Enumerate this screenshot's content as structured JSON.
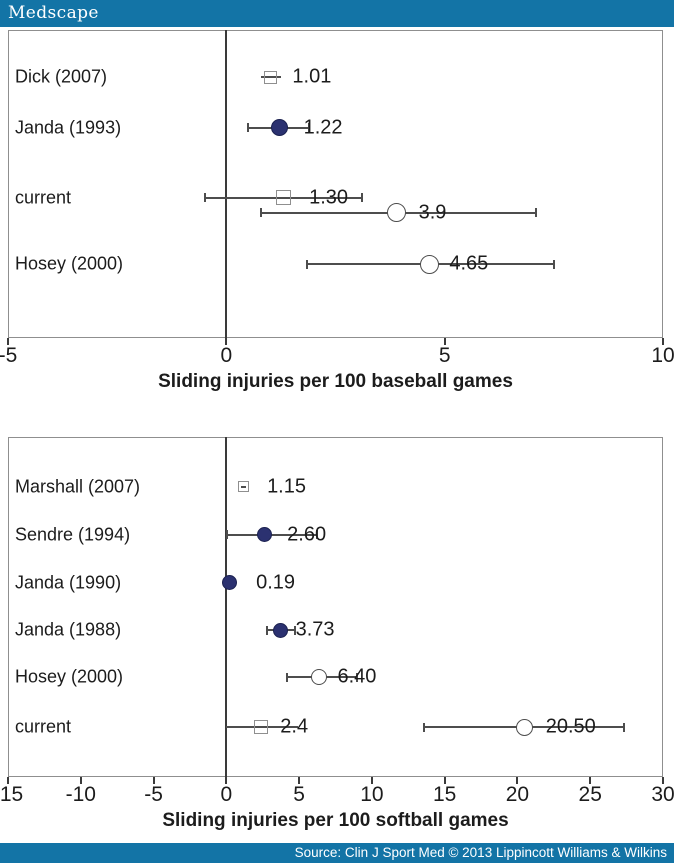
{
  "header": {
    "brand": "Medscape"
  },
  "footer": {
    "source": "Source: Clin J Sport Med © 2013 Lippincott Williams & Wilkins"
  },
  "colors": {
    "bar": "#1374a6",
    "filled_marker": "#2b3170",
    "line": "#4d4d4d",
    "square_edge": "#8f8f8f",
    "zero_line": "#3a3a3a",
    "text": "#1c1c1c"
  },
  "chart_data": [
    {
      "type": "scatter",
      "subtype": "forest-plot",
      "title": "Sliding injuries per 100 baseball games",
      "xlabel": "Sliding injuries per 100 baseball games",
      "xlim": [
        -5,
        10
      ],
      "xticks": [
        -5,
        0,
        5,
        10
      ],
      "zero_line": 0,
      "grid": false,
      "rows": [
        {
          "label": "Dick (2007)",
          "y": 0.153,
          "points": [
            {
              "marker": "square-open",
              "value": 1.01,
              "ci": [
                0.8,
                1.25
              ],
              "caps": false,
              "value_label": "1.01",
              "size": 13,
              "dx": 22,
              "y": 0.153
            }
          ]
        },
        {
          "label": "Janda (1993)",
          "y": 0.318,
          "points": [
            {
              "marker": "circle-filled",
              "value": 1.22,
              "ci": [
                0.5,
                1.9
              ],
              "caps": true,
              "value_label": "1.22",
              "size": 17,
              "dx": 24,
              "y": 0.318
            }
          ]
        },
        {
          "label": "current",
          "y": 0.545,
          "points": [
            {
              "marker": "square-open",
              "value": 1.3,
              "ci": [
                -0.5,
                3.1
              ],
              "caps": true,
              "value_label": "1.30",
              "size": 15,
              "dx": 26,
              "y": 0.545
            },
            {
              "marker": "circle-open",
              "value": 3.9,
              "ci": [
                0.8,
                7.1
              ],
              "caps": true,
              "value_label": "3.9",
              "size": 19,
              "dx": 22,
              "y": 0.594
            }
          ]
        },
        {
          "label": "Hosey (2000)",
          "y": 0.76,
          "points": [
            {
              "marker": "circle-open",
              "value": 4.65,
              "ci": [
                1.85,
                7.5
              ],
              "caps": true,
              "value_label": "4.65",
              "size": 19,
              "dx": 20,
              "y": 0.76
            }
          ]
        }
      ]
    },
    {
      "type": "scatter",
      "subtype": "forest-plot",
      "title": "Sliding injuries per 100 softball games",
      "xlabel": "Sliding injuries per 100 softball games",
      "xlim": [
        -15,
        30
      ],
      "xticks": [
        -15,
        -10,
        -5,
        0,
        5,
        10,
        15,
        20,
        25,
        30
      ],
      "zero_line": 0,
      "grid": false,
      "rows": [
        {
          "label": "Marshall (2007)",
          "y": 0.147,
          "points": [
            {
              "marker": "square-open",
              "value": 1.15,
              "ci": [
                1.0,
                1.35
              ],
              "caps": false,
              "value_label": "1.15",
              "size": 11,
              "dx": 24,
              "y": 0.147
            }
          ]
        },
        {
          "label": "Sendre (1994)",
          "y": 0.288,
          "points": [
            {
              "marker": "circle-filled",
              "value": 2.6,
              "ci": [
                0.05,
                6.25
              ],
              "caps": true,
              "value_label": "2.60",
              "size": 15,
              "dx": 23,
              "y": 0.288
            }
          ]
        },
        {
          "label": "Janda (1990)",
          "y": 0.429,
          "points": [
            {
              "marker": "circle-filled",
              "value": 0.19,
              "ci": null,
              "caps": false,
              "value_label": "0.19",
              "size": 15,
              "dx": 27,
              "y": 0.429
            }
          ]
        },
        {
          "label": "Janda (1988)",
          "y": 0.568,
          "points": [
            {
              "marker": "circle-filled",
              "value": 3.73,
              "ci": [
                2.8,
                4.7
              ],
              "caps": true,
              "value_label": "3.73",
              "size": 15,
              "dx": 15,
              "y": 0.568
            }
          ]
        },
        {
          "label": "Hosey (2000)",
          "y": 0.706,
          "points": [
            {
              "marker": "circle-open",
              "value": 6.4,
              "ci": [
                4.2,
                9.0
              ],
              "caps": true,
              "value_label": "6.40",
              "size": 16,
              "dx": 18,
              "y": 0.706
            }
          ]
        },
        {
          "label": "current",
          "y": 0.853,
          "points": [
            {
              "marker": "square-open",
              "value": 2.4,
              "ci": [
                0,
                4.9
              ],
              "caps": false,
              "value_label": "2.4",
              "size": 14,
              "dx": 19,
              "y": 0.853
            },
            {
              "marker": "circle-open",
              "value": 20.5,
              "ci": [
                13.6,
                27.3
              ],
              "caps": true,
              "value_label": "20.50",
              "size": 17,
              "dx": 21,
              "y": 0.853
            }
          ]
        }
      ]
    }
  ]
}
